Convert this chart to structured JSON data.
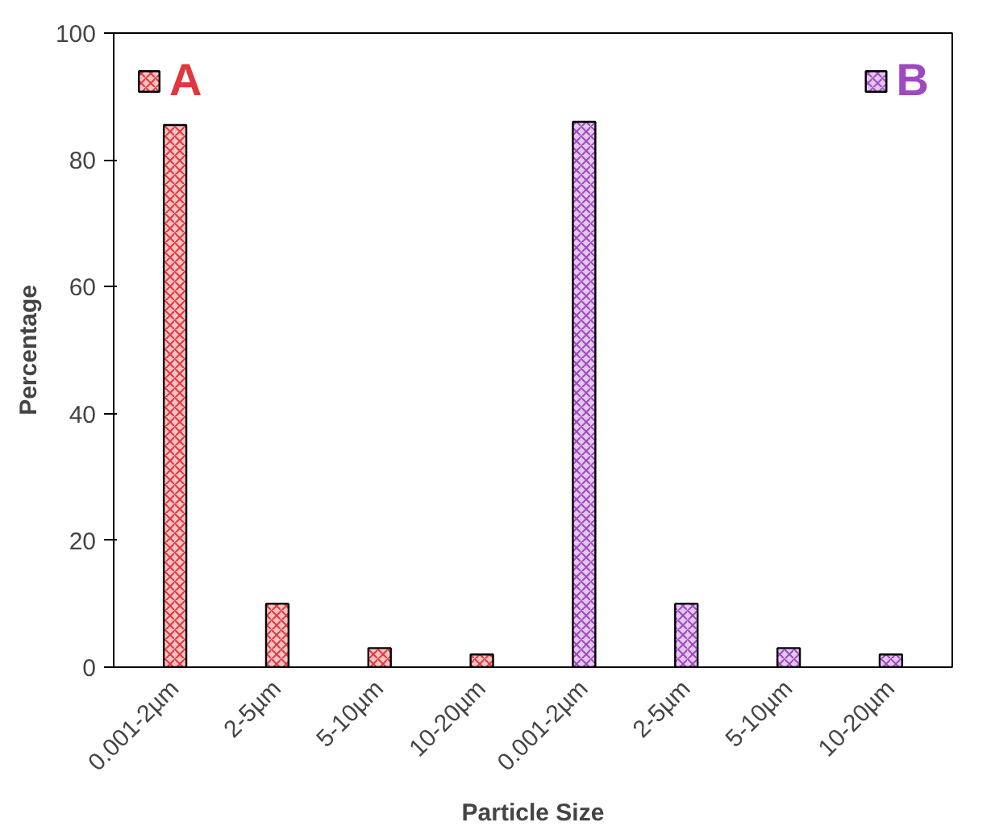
{
  "chart_data": {
    "type": "bar",
    "xlabel": "Particle Size",
    "ylabel": "Percentage",
    "categories": [
      "0.001-2µm",
      "2-5µm",
      "5-10µm",
      "10-20µm",
      "0.001-2µm",
      "2-5µm",
      "5-10µm",
      "10-20µm"
    ],
    "series": [
      {
        "name": "A",
        "color": "#e0383e",
        "values": [
          85.5,
          10,
          3,
          2,
          null,
          null,
          null,
          null
        ]
      },
      {
        "name": "B",
        "color": "#a048c0",
        "values": [
          null,
          null,
          null,
          null,
          86,
          10,
          3,
          2
        ]
      }
    ],
    "ylim": [
      0,
      100
    ],
    "yticks": [
      0,
      20,
      40,
      60,
      80,
      100
    ],
    "grid": false,
    "legend": "top"
  }
}
